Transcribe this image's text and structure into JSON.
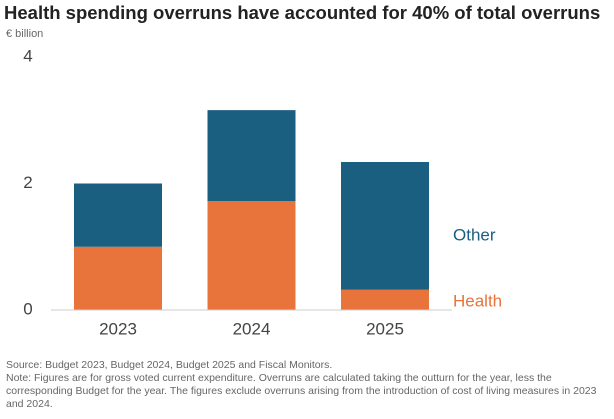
{
  "chart_data": {
    "type": "stacked_bar",
    "title": "Health spending overruns have accounted for 40% of total overruns",
    "y_label": "€ billion",
    "categories": [
      "2023",
      "2024",
      "2025"
    ],
    "series": [
      {
        "name": "Health",
        "color": "#e8743b",
        "values": [
          1.0,
          1.72,
          0.32
        ]
      },
      {
        "name": "Other",
        "color": "#1a5e80",
        "values": [
          1.0,
          1.44,
          2.02
        ]
      }
    ],
    "ylim": [
      0,
      4
    ],
    "yticks": [
      0,
      2,
      4
    ],
    "source": "Source: Budget 2023, Budget 2024, Budget 2025 and Fiscal Monitors.",
    "note": "Note: Figures are for gross voted current expenditure. Overruns are calculated taking the outturn for the year, less the corresponding Budget for the year. The figures exclude overruns arising from the introduction of cost of living measures in 2023 and 2024."
  }
}
